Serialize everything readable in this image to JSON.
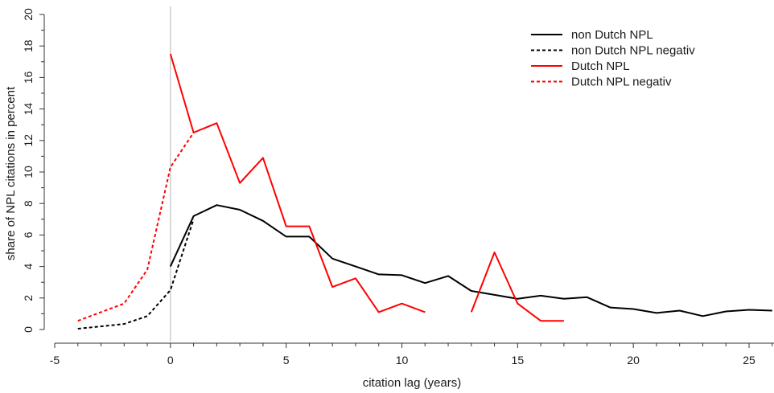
{
  "chart_data": {
    "type": "line",
    "title": "",
    "xlabel": "citation lag (years)",
    "ylabel": "share of NPL citations in percent",
    "xlim": [
      -5,
      26
    ],
    "ylim": [
      0,
      20
    ],
    "x_ticks": [
      -5,
      0,
      5,
      10,
      15,
      20,
      25
    ],
    "y_ticks": [
      0,
      2,
      4,
      6,
      8,
      10,
      12,
      14,
      16,
      18,
      20
    ],
    "reference_line_x": 0,
    "grid": false,
    "legend_position": "top-right",
    "series": [
      {
        "name": "non Dutch NPL",
        "color": "#000000",
        "dash": "solid",
        "points": [
          [
            0,
            4.0
          ],
          [
            1,
            7.2
          ],
          [
            2,
            7.9
          ],
          [
            3,
            7.6
          ],
          [
            4,
            6.9
          ],
          [
            5,
            5.9
          ],
          [
            6,
            5.9
          ],
          [
            7,
            4.5
          ],
          [
            8,
            4.0
          ],
          [
            9,
            3.5
          ],
          [
            10,
            3.45
          ],
          [
            11,
            2.95
          ],
          [
            12,
            3.4
          ],
          [
            13,
            2.45
          ],
          [
            14,
            2.2
          ],
          [
            15,
            1.95
          ],
          [
            16,
            2.15
          ],
          [
            17,
            1.95
          ],
          [
            18,
            2.05
          ],
          [
            19,
            1.4
          ],
          [
            20,
            1.3
          ],
          [
            21,
            1.05
          ],
          [
            22,
            1.2
          ],
          [
            23,
            0.85
          ],
          [
            24,
            1.15
          ],
          [
            25,
            1.25
          ],
          [
            26,
            1.2
          ]
        ]
      },
      {
        "name": "non Dutch NPL negativ",
        "color": "#000000",
        "dash": "dotted",
        "points": [
          [
            -4,
            0.05
          ],
          [
            -3,
            0.2
          ],
          [
            -2,
            0.35
          ],
          [
            -1,
            0.85
          ],
          [
            0,
            2.5
          ],
          [
            1,
            7.0
          ]
        ]
      },
      {
        "name": "Dutch NPL",
        "color": "#ff0000",
        "dash": "solid",
        "segments": [
          [
            [
              0,
              17.5
            ],
            [
              1,
              12.5
            ],
            [
              2,
              13.1
            ],
            [
              3,
              9.3
            ],
            [
              4,
              10.9
            ],
            [
              5,
              6.55
            ],
            [
              6,
              6.55
            ],
            [
              7,
              2.7
            ],
            [
              8,
              3.25
            ],
            [
              9,
              1.1
            ],
            [
              10,
              1.65
            ],
            [
              11,
              1.1
            ]
          ],
          [
            [
              13,
              1.1
            ],
            [
              14,
              4.9
            ],
            [
              15,
              1.65
            ],
            [
              16,
              0.55
            ],
            [
              17,
              0.55
            ]
          ]
        ]
      },
      {
        "name": "Dutch NPL negativ",
        "color": "#ff0000",
        "dash": "dotted",
        "points": [
          [
            -4,
            0.55
          ],
          [
            -3,
            1.1
          ],
          [
            -2,
            1.65
          ],
          [
            -1,
            3.8
          ],
          [
            0,
            10.3
          ],
          [
            1,
            12.5
          ]
        ]
      }
    ]
  }
}
